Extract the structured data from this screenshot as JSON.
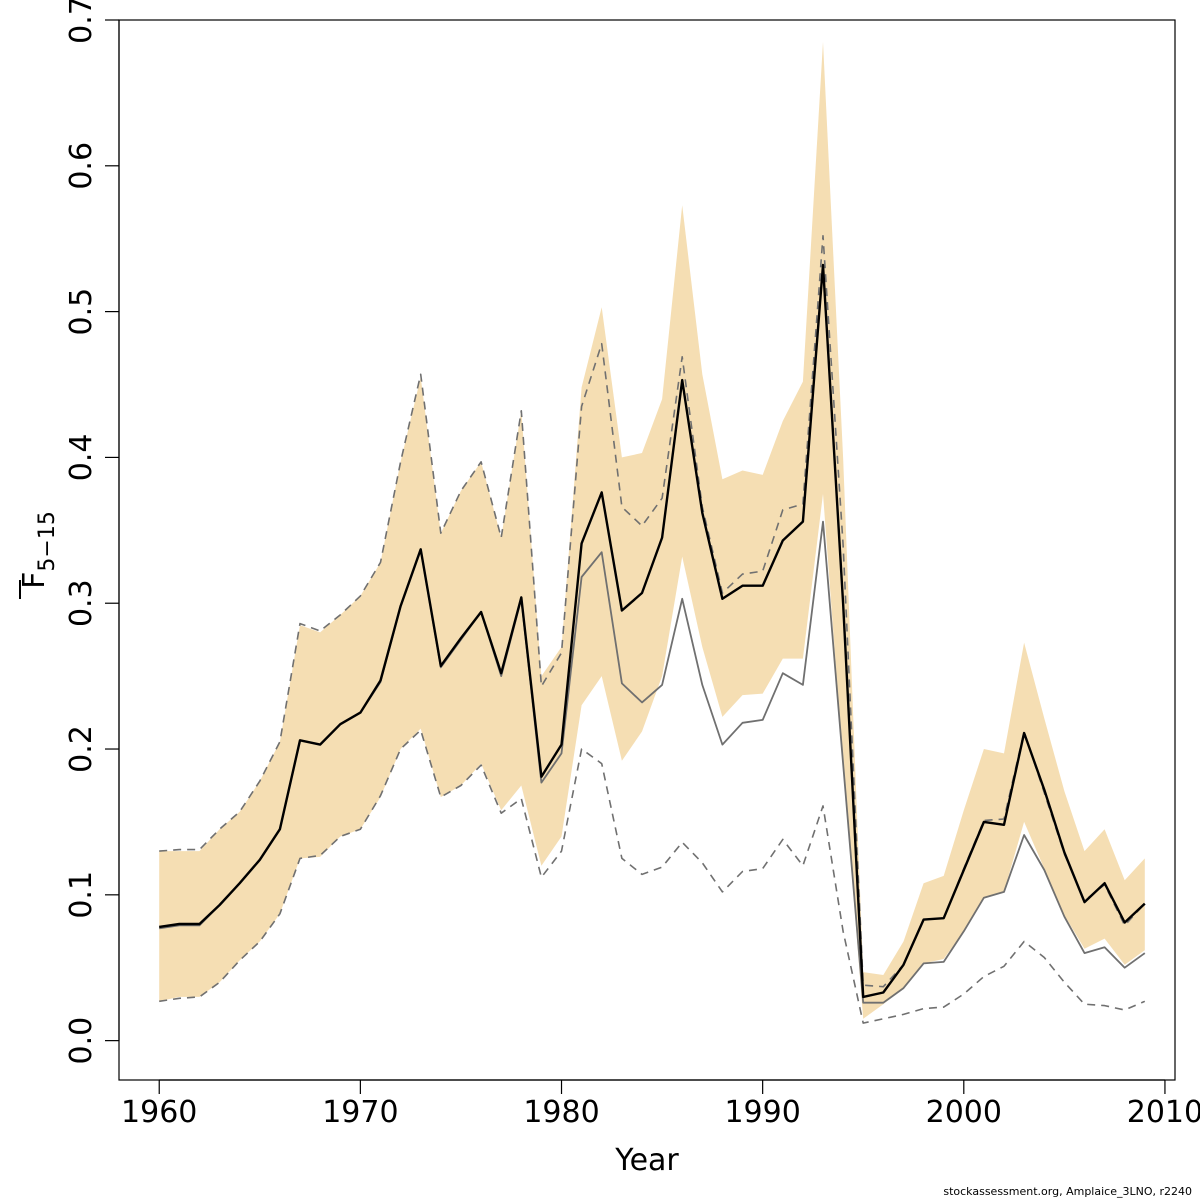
{
  "chart_data": {
    "type": "line",
    "title": "",
    "xlabel": "Year",
    "ylabel": {
      "main": "F",
      "subscript": "5−15"
    },
    "xlim": [
      1958,
      2010.5
    ],
    "ylim": [
      -0.027,
      0.7
    ],
    "xticks": [
      1960,
      1970,
      1980,
      1990,
      2000,
      2010
    ],
    "xtick_labels": [
      "1960",
      "1970",
      "1980",
      "1990",
      "2000",
      "2010"
    ],
    "yticks": [
      0.0,
      0.1,
      0.2,
      0.3,
      0.4,
      0.5,
      0.6,
      0.7
    ],
    "ytick_labels": [
      "0.0",
      "0.1",
      "0.2",
      "0.3",
      "0.4",
      "0.5",
      "0.6",
      "0.7"
    ],
    "grid": false,
    "legend": "none",
    "x": [
      1960,
      1961,
      1962,
      1963,
      1964,
      1965,
      1966,
      1967,
      1968,
      1969,
      1970,
      1971,
      1972,
      1973,
      1974,
      1975,
      1976,
      1977,
      1978,
      1979,
      1980,
      1981,
      1982,
      1983,
      1984,
      1985,
      1986,
      1987,
      1988,
      1989,
      1990,
      1991,
      1992,
      1993,
      1994,
      1995,
      1996,
      1997,
      1998,
      1999,
      2000,
      2001,
      2002,
      2003,
      2004,
      2005,
      2006,
      2007,
      2008,
      2009
    ],
    "band": {
      "color": "#F5DEB3",
      "upper": [
        0.13,
        0.13,
        0.13,
        0.145,
        0.157,
        0.178,
        0.205,
        0.285,
        0.28,
        0.292,
        0.305,
        0.328,
        0.397,
        0.455,
        0.348,
        0.377,
        0.397,
        0.345,
        0.432,
        0.25,
        0.27,
        0.448,
        0.503,
        0.4,
        0.403,
        0.44,
        0.573,
        0.457,
        0.385,
        0.391,
        0.388,
        0.425,
        0.452,
        0.685,
        0.4,
        0.047,
        0.045,
        0.068,
        0.108,
        0.113,
        0.158,
        0.2,
        0.197,
        0.273,
        0.221,
        0.171,
        0.13,
        0.145,
        0.11,
        0.125
      ],
      "lower": [
        0.027,
        0.03,
        0.03,
        0.04,
        0.055,
        0.068,
        0.087,
        0.125,
        0.126,
        0.14,
        0.145,
        0.167,
        0.2,
        0.214,
        0.167,
        0.175,
        0.19,
        0.158,
        0.175,
        0.12,
        0.14,
        0.23,
        0.25,
        0.192,
        0.212,
        0.25,
        0.332,
        0.27,
        0.222,
        0.237,
        0.238,
        0.262,
        0.262,
        0.375,
        0.19,
        0.015,
        0.025,
        0.036,
        0.053,
        0.056,
        0.075,
        0.098,
        0.102,
        0.15,
        0.118,
        0.086,
        0.063,
        0.07,
        0.052,
        0.062
      ]
    },
    "series": [
      {
        "values": [
          0.078,
          0.08,
          0.08,
          0.093,
          0.108,
          0.124,
          0.145,
          0.206,
          0.203,
          0.217,
          0.225,
          0.247,
          0.298,
          0.337,
          0.257,
          0.276,
          0.294,
          0.252,
          0.304,
          0.181,
          0.203,
          0.341,
          0.376,
          0.295,
          0.307,
          0.345,
          0.453,
          0.362,
          0.303,
          0.312,
          0.312,
          0.343,
          0.356,
          0.532,
          0.3,
          0.03,
          0.033,
          0.052,
          0.083,
          0.084,
          0.117,
          0.15,
          0.148,
          0.211,
          0.172,
          0.129,
          0.095,
          0.108,
          0.081,
          0.094
        ],
        "color": "#000000",
        "width": 2.4,
        "dash": "none"
      },
      {
        "values": [
          0.077,
          0.079,
          0.079,
          0.093,
          0.108,
          0.124,
          0.145,
          0.206,
          0.203,
          0.217,
          0.225,
          0.246,
          0.298,
          0.337,
          0.256,
          0.275,
          0.294,
          0.25,
          0.303,
          0.177,
          0.197,
          0.318,
          0.335,
          0.245,
          0.232,
          0.244,
          0.303,
          0.244,
          0.203,
          0.218,
          0.22,
          0.252,
          0.244,
          0.356,
          0.19,
          0.026,
          0.026,
          0.036,
          0.053,
          0.054,
          0.075,
          0.098,
          0.102,
          0.141,
          0.117,
          0.085,
          0.06,
          0.064,
          0.05,
          0.06
        ],
        "color": "#707070",
        "width": 1.8,
        "dash": "none"
      },
      {
        "values": [
          0.13,
          0.131,
          0.131,
          0.145,
          0.157,
          0.178,
          0.205,
          0.286,
          0.281,
          0.292,
          0.305,
          0.328,
          0.397,
          0.457,
          0.348,
          0.377,
          0.397,
          0.345,
          0.432,
          0.243,
          0.266,
          0.435,
          0.478,
          0.366,
          0.353,
          0.372,
          0.469,
          0.366,
          0.307,
          0.32,
          0.322,
          0.364,
          0.368,
          0.552,
          0.34,
          0.038,
          0.037,
          0.052,
          0.083,
          0.084,
          0.118,
          0.151,
          0.152,
          0.212,
          0.17,
          0.128,
          0.096,
          0.107,
          0.079,
          0.094
        ],
        "color": "#707070",
        "width": 1.6,
        "dash": "8,6"
      },
      {
        "values": [
          0.027,
          0.029,
          0.03,
          0.04,
          0.055,
          0.068,
          0.087,
          0.125,
          0.127,
          0.14,
          0.145,
          0.168,
          0.2,
          0.213,
          0.167,
          0.175,
          0.189,
          0.156,
          0.166,
          0.112,
          0.13,
          0.2,
          0.19,
          0.125,
          0.114,
          0.119,
          0.136,
          0.122,
          0.102,
          0.116,
          0.118,
          0.138,
          0.12,
          0.161,
          0.075,
          0.012,
          0.015,
          0.018,
          0.022,
          0.023,
          0.032,
          0.044,
          0.051,
          0.068,
          0.057,
          0.04,
          0.025,
          0.024,
          0.021,
          0.027
        ],
        "color": "#707070",
        "width": 1.6,
        "dash": "8,6"
      }
    ]
  },
  "credit": "stockassessment.org, Amplaice_3LNO, r2240"
}
